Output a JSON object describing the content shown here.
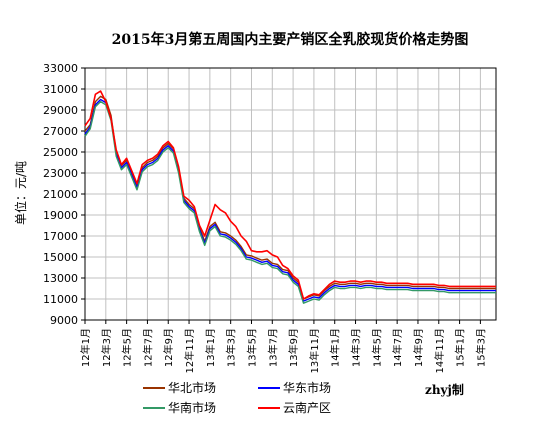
{
  "chart_data": {
    "type": "line",
    "title": "2015年3月第五周国内主要产销区全乳胶现货价格走势图",
    "xlabel": "",
    "ylabel": "单位：元/吨",
    "ylim": [
      9000,
      33000
    ],
    "yticks": [
      9000,
      11000,
      13000,
      15000,
      17000,
      19000,
      21000,
      23000,
      25000,
      27000,
      29000,
      31000,
      33000
    ],
    "categories": [
      "12年1月",
      "12年3月",
      "12年5月",
      "12年7月",
      "12年9月",
      "12年11月",
      "13年1月",
      "13年3月",
      "13年5月",
      "13年7月",
      "13年9月",
      "13年11月",
      "14年1月",
      "14年3月",
      "14年5月",
      "14年7月",
      "14年9月",
      "14年11月",
      "15年1月",
      "15年3月"
    ],
    "grid": true,
    "legend_position": "bottom",
    "credit": "zhyj制",
    "x": [
      0,
      0.5,
      1,
      1.5,
      2,
      2.5,
      3,
      3.5,
      4,
      4.5,
      5,
      5.5,
      6,
      6.5,
      7,
      7.5,
      8,
      8.5,
      9,
      9.5,
      10,
      10.5,
      11,
      11.5,
      12,
      12.5,
      13,
      13.5,
      14,
      14.5,
      15,
      15.5,
      16,
      16.5,
      17,
      17.5,
      18,
      18.5,
      19,
      19.5,
      20,
      20.5,
      21,
      21.5,
      22,
      22.5,
      23,
      23.5,
      24,
      24.5,
      25,
      25.5,
      26,
      26.5,
      27,
      27.5,
      28,
      28.5,
      29,
      29.5,
      30,
      30.5,
      31,
      31.5,
      32,
      32.5,
      33,
      33.5,
      34,
      34.5,
      35,
      35.5,
      36,
      36.5,
      37,
      37.5,
      38,
      38.5,
      39,
      39.5
    ],
    "series": [
      {
        "name": "华北市场",
        "color": "#993300",
        "values": [
          27000,
          27600,
          29800,
          30300,
          30000,
          28500,
          25000,
          23700,
          24200,
          23000,
          21800,
          23500,
          24000,
          24200,
          24600,
          25400,
          25800,
          25300,
          23400,
          20600,
          20000,
          19600,
          17800,
          16500,
          17900,
          18300,
          17400,
          17300,
          17000,
          16600,
          16000,
          15200,
          15100,
          14900,
          14700,
          14800,
          14400,
          14300,
          13800,
          13700,
          13000,
          12600,
          11000,
          11200,
          11400,
          11300,
          11800,
          12200,
          12500,
          12400,
          12400,
          12500,
          12500,
          12400,
          12500,
          12500,
          12400,
          12400,
          12300,
          12300,
          12300,
          12300,
          12300,
          12200,
          12200,
          12200,
          12200,
          12200,
          12100,
          12100,
          12000,
          12000,
          12000,
          12000,
          12000,
          12000,
          12000,
          12000,
          12000,
          12000
        ]
      },
      {
        "name": "华东市场",
        "color": "#0000ff",
        "values": [
          26700,
          27400,
          29500,
          30000,
          29700,
          28200,
          24800,
          23500,
          24000,
          22800,
          21600,
          23300,
          23800,
          24000,
          24400,
          25200,
          25600,
          25100,
          23200,
          20400,
          19800,
          19400,
          17600,
          16300,
          17700,
          18100,
          17200,
          17100,
          16800,
          16400,
          15800,
          15000,
          14900,
          14700,
          14500,
          14600,
          14200,
          14100,
          13600,
          13500,
          12800,
          12400,
          10800,
          11000,
          11200,
          11100,
          11600,
          12000,
          12300,
          12200,
          12200,
          12300,
          12300,
          12200,
          12300,
          12300,
          12200,
          12200,
          12100,
          12100,
          12100,
          12100,
          12100,
          12000,
          12000,
          12000,
          12000,
          12000,
          11900,
          11900,
          11800,
          11800,
          11800,
          11800,
          11800,
          11800,
          11800,
          11800,
          11800,
          11800
        ]
      },
      {
        "name": "华南市场",
        "color": "#339966",
        "values": [
          26500,
          27200,
          29300,
          29800,
          29500,
          28000,
          24600,
          23300,
          23800,
          22600,
          21400,
          23100,
          23600,
          23800,
          24200,
          25000,
          25400,
          24900,
          23000,
          20200,
          19600,
          19200,
          17400,
          16100,
          17500,
          17900,
          17000,
          16900,
          16600,
          16200,
          15600,
          14800,
          14700,
          14500,
          14300,
          14400,
          14000,
          13900,
          13400,
          13300,
          12600,
          12200,
          10600,
          10800,
          11000,
          10900,
          11400,
          11800,
          12100,
          12000,
          12000,
          12100,
          12100,
          12000,
          12100,
          12100,
          12000,
          12000,
          11900,
          11900,
          11900,
          11900,
          11900,
          11800,
          11800,
          11800,
          11800,
          11800,
          11700,
          11700,
          11600,
          11600,
          11600,
          11600,
          11600,
          11600,
          11600,
          11600,
          11600,
          11600
        ]
      },
      {
        "name": "云南产区",
        "color": "#ff0000",
        "values": [
          27500,
          28200,
          30500,
          30800,
          29800,
          28200,
          25200,
          23800,
          24400,
          23200,
          22000,
          23800,
          24200,
          24400,
          24800,
          25600,
          26000,
          25400,
          23600,
          20800,
          20400,
          19800,
          18000,
          17000,
          18500,
          20000,
          19500,
          19200,
          18400,
          17900,
          17000,
          16500,
          15600,
          15500,
          15500,
          15600,
          15200,
          15000,
          14200,
          13900,
          13200,
          12800,
          11000,
          11300,
          11500,
          11400,
          11900,
          12400,
          12700,
          12600,
          12600,
          12700,
          12700,
          12600,
          12700,
          12700,
          12600,
          12600,
          12500,
          12500,
          12500,
          12500,
          12500,
          12400,
          12400,
          12400,
          12400,
          12400,
          12300,
          12300,
          12200,
          12200,
          12200,
          12200,
          12200,
          12200,
          12200,
          12200,
          12200,
          12200
        ]
      }
    ]
  }
}
